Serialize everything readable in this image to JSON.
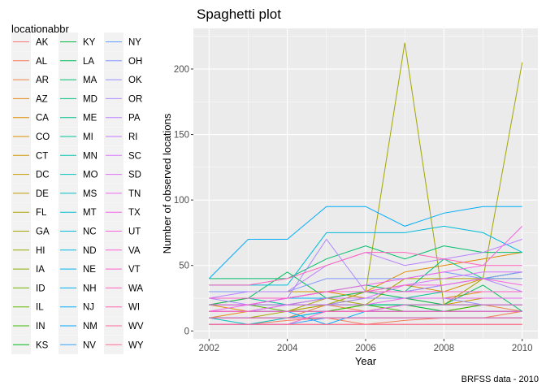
{
  "chart_data": {
    "type": "line",
    "title": "Spaghetti plot",
    "xlabel": "Year",
    "ylabel": "Number of observed locations",
    "caption": "BRFSS data - 2010",
    "legend_title": "locationabbr",
    "legend_position": "left",
    "grid": true,
    "panel_background": "#EBEBEB",
    "x": [
      2002,
      2003,
      2004,
      2005,
      2006,
      2007,
      2008,
      2009,
      2010
    ],
    "x_ticks": [
      2002,
      2004,
      2006,
      2008,
      2010
    ],
    "y_ticks": [
      0,
      50,
      100,
      150,
      200
    ],
    "xlim": [
      2001.6,
      2010.4
    ],
    "ylim": [
      -6,
      231
    ],
    "series": [
      {
        "name": "AK",
        "color": "#F8766D",
        "values": [
          5,
          5,
          5,
          5,
          5,
          5,
          5,
          5,
          5
        ]
      },
      {
        "name": "AL",
        "color": "#F37B59",
        "values": [
          5,
          5,
          8,
          10,
          5,
          8,
          10,
          10,
          15
        ]
      },
      {
        "name": "AR",
        "color": "#ED8141",
        "values": [
          10,
          10,
          10,
          20,
          15,
          20,
          20,
          20,
          15
        ]
      },
      {
        "name": "AZ",
        "color": "#E7861B",
        "values": [
          10,
          15,
          15,
          20,
          25,
          25,
          25,
          30,
          30
        ]
      },
      {
        "name": "CA",
        "color": "#E08B00",
        "values": [
          20,
          15,
          20,
          25,
          30,
          45,
          50,
          55,
          60
        ]
      },
      {
        "name": "CO",
        "color": "#D89000",
        "values": [
          20,
          25,
          25,
          30,
          30,
          35,
          30,
          40,
          40
        ]
      },
      {
        "name": "CT",
        "color": "#CF9400",
        "values": [
          30,
          30,
          30,
          30,
          25,
          25,
          20,
          25,
          25
        ]
      },
      {
        "name": "DC",
        "color": "#C59900",
        "values": [
          10,
          10,
          10,
          10,
          10,
          10,
          10,
          10,
          10
        ]
      },
      {
        "name": "DE",
        "color": "#BB9D00",
        "values": [
          15,
          15,
          15,
          15,
          15,
          15,
          15,
          15,
          15
        ]
      },
      {
        "name": "FL",
        "color": "#AFA100",
        "values": [
          10,
          10,
          15,
          25,
          20,
          40,
          40,
          40,
          45
        ]
      },
      {
        "name": "GA",
        "color": "#A3A500",
        "values": [
          15,
          15,
          15,
          20,
          30,
          220,
          20,
          40,
          205
        ]
      },
      {
        "name": "HI",
        "color": "#95A900",
        "values": [
          20,
          20,
          20,
          20,
          20,
          20,
          20,
          20,
          20
        ]
      },
      {
        "name": "IA",
        "color": "#86AC00",
        "values": [
          15,
          15,
          15,
          15,
          15,
          15,
          15,
          15,
          15
        ]
      },
      {
        "name": "ID",
        "color": "#75AF00",
        "values": [
          10,
          10,
          10,
          15,
          15,
          15,
          15,
          20,
          20
        ]
      },
      {
        "name": "IL",
        "color": "#5EB300",
        "values": [
          20,
          20,
          15,
          15,
          20,
          20,
          15,
          15,
          15
        ]
      },
      {
        "name": "IN",
        "color": "#3DB600",
        "values": [
          15,
          15,
          15,
          15,
          20,
          15,
          15,
          20,
          20
        ]
      },
      {
        "name": "KS",
        "color": "#00B81B",
        "values": [
          20,
          20,
          20,
          20,
          20,
          20,
          20,
          20,
          20
        ]
      },
      {
        "name": "KY",
        "color": "#00BA42",
        "values": [
          20,
          20,
          20,
          20,
          20,
          20,
          15,
          15,
          15
        ]
      },
      {
        "name": "LA",
        "color": "#00BC59",
        "values": [
          20,
          25,
          45,
          25,
          30,
          25,
          20,
          35,
          15
        ]
      },
      {
        "name": "MA",
        "color": "#00BE6C",
        "values": [
          40,
          40,
          40,
          55,
          65,
          55,
          65,
          60,
          60
        ]
      },
      {
        "name": "MD",
        "color": "#00BF7D",
        "values": [
          20,
          20,
          25,
          30,
          35,
          30,
          55,
          40,
          45
        ]
      },
      {
        "name": "ME",
        "color": "#00C08D",
        "values": [
          10,
          10,
          10,
          10,
          10,
          10,
          10,
          10,
          10
        ]
      },
      {
        "name": "MI",
        "color": "#00C19C",
        "values": [
          25,
          25,
          20,
          25,
          25,
          25,
          30,
          30,
          30
        ]
      },
      {
        "name": "MN",
        "color": "#00C1AA",
        "values": [
          20,
          20,
          20,
          20,
          20,
          20,
          20,
          20,
          20
        ]
      },
      {
        "name": "MO",
        "color": "#00C0B8",
        "values": [
          15,
          15,
          15,
          15,
          15,
          15,
          15,
          15,
          15
        ]
      },
      {
        "name": "MS",
        "color": "#00BFC4",
        "values": [
          10,
          5,
          10,
          15,
          15,
          20,
          20,
          20,
          20
        ]
      },
      {
        "name": "MT",
        "color": "#00BDD0",
        "values": [
          15,
          15,
          15,
          15,
          15,
          15,
          15,
          15,
          15
        ]
      },
      {
        "name": "NC",
        "color": "#00BBDB",
        "values": [
          35,
          35,
          35,
          75,
          75,
          75,
          80,
          75,
          60
        ]
      },
      {
        "name": "ND",
        "color": "#00B8E5",
        "values": [
          10,
          10,
          10,
          10,
          10,
          10,
          10,
          10,
          10
        ]
      },
      {
        "name": "NE",
        "color": "#00B4EF",
        "values": [
          10,
          10,
          10,
          15,
          15,
          15,
          15,
          15,
          15
        ]
      },
      {
        "name": "NH",
        "color": "#00B0F6",
        "values": [
          25,
          25,
          25,
          25,
          25,
          25,
          25,
          25,
          25
        ]
      },
      {
        "name": "NJ",
        "color": "#00ACFC",
        "values": [
          40,
          70,
          70,
          95,
          95,
          80,
          90,
          95,
          95
        ]
      },
      {
        "name": "NM",
        "color": "#00A7FF",
        "values": [
          15,
          15,
          15,
          5,
          15,
          15,
          15,
          15,
          15
        ]
      },
      {
        "name": "NV",
        "color": "#35A2FF",
        "values": [
          5,
          5,
          5,
          10,
          10,
          10,
          10,
          10,
          10
        ]
      },
      {
        "name": "NY",
        "color": "#619CFF",
        "values": [
          20,
          20,
          25,
          30,
          30,
          30,
          35,
          40,
          40
        ]
      },
      {
        "name": "OH",
        "color": "#7F96FF",
        "values": [
          30,
          30,
          30,
          40,
          40,
          40,
          45,
          40,
          45
        ]
      },
      {
        "name": "OK",
        "color": "#978FFF",
        "values": [
          15,
          15,
          20,
          20,
          25,
          25,
          25,
          20,
          20
        ]
      },
      {
        "name": "OR",
        "color": "#AB88FF",
        "values": [
          25,
          20,
          25,
          70,
          30,
          30,
          35,
          40,
          30
        ]
      },
      {
        "name": "PA",
        "color": "#BC81FF",
        "values": [
          25,
          30,
          30,
          50,
          60,
          50,
          55,
          60,
          70
        ]
      },
      {
        "name": "RI",
        "color": "#CB7AFF",
        "values": [
          10,
          10,
          10,
          10,
          10,
          10,
          10,
          10,
          10
        ]
      },
      {
        "name": "SC",
        "color": "#D874FD",
        "values": [
          20,
          20,
          20,
          25,
          25,
          35,
          40,
          45,
          45
        ]
      },
      {
        "name": "SD",
        "color": "#E36EF6",
        "values": [
          15,
          15,
          15,
          15,
          15,
          15,
          15,
          15,
          15
        ]
      },
      {
        "name": "TN",
        "color": "#EB69EF",
        "values": [
          15,
          15,
          20,
          20,
          20,
          25,
          25,
          25,
          25
        ]
      },
      {
        "name": "TX",
        "color": "#F265E7",
        "values": [
          15,
          20,
          25,
          30,
          35,
          40,
          45,
          50,
          80
        ]
      },
      {
        "name": "UT",
        "color": "#F763DE",
        "values": [
          20,
          20,
          25,
          30,
          30,
          35,
          35,
          40,
          35
        ]
      },
      {
        "name": "VA",
        "color": "#FB61D3",
        "values": [
          5,
          5,
          5,
          15,
          15,
          20,
          20,
          20,
          20
        ]
      },
      {
        "name": "VT",
        "color": "#FE61C8",
        "values": [
          25,
          25,
          25,
          30,
          30,
          30,
          30,
          30,
          30
        ]
      },
      {
        "name": "WA",
        "color": "#FF62BC",
        "values": [
          35,
          35,
          40,
          50,
          60,
          60,
          55,
          50,
          50
        ]
      },
      {
        "name": "WI",
        "color": "#FF65AE",
        "values": [
          15,
          15,
          15,
          15,
          15,
          15,
          15,
          15,
          15
        ]
      },
      {
        "name": "WV",
        "color": "#FF68A0",
        "values": [
          10,
          10,
          10,
          10,
          10,
          10,
          10,
          10,
          10
        ]
      },
      {
        "name": "WY",
        "color": "#FD6C91",
        "values": [
          5,
          5,
          5,
          5,
          5,
          5,
          5,
          5,
          5
        ]
      }
    ]
  }
}
